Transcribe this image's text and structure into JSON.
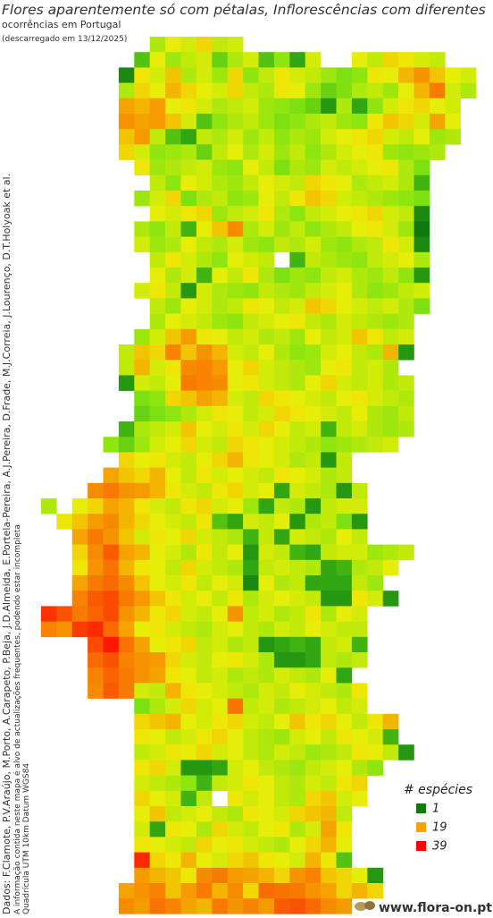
{
  "header": {
    "title": "Flores aparentemente só com pétalas, Inflorescências com diferentes",
    "subtitle": "ocorrências em Portugal",
    "downloaded": "(descarregado em 13/12/2025)"
  },
  "credits": [
    "Dados: F.Clamote, P.V.Araújo, M.Porto, A.Carapeto, P.Beja, J.D.Almeida, E.Portela-Pereira, A.J.Pereira, D.Frade, M.J.Correia, J.Lourenço, D.T.Holyoak et al.",
    "A informação contida neste mapa é alvo de actualizações frequentes, podendo estar incompleta",
    "Quadrícula UTM 10km Datum WGS84"
  ],
  "legend": {
    "title": "# espécies",
    "items": [
      {
        "value": 1,
        "color": "#107a10"
      },
      {
        "value": 19,
        "color": "#f5a300"
      },
      {
        "value": 39,
        "color": "#ff0000"
      }
    ]
  },
  "grid": {
    "rows": [
      [
        null,
        null,
        null,
        null,
        null,
        null,
        null,
        null,
        11,
        14,
        13,
        16,
        12,
        13
      ],
      [
        null,
        null,
        null,
        null,
        null,
        null,
        null,
        6,
        14,
        10,
        12,
        13,
        7,
        11,
        13,
        6,
        9,
        4,
        13,
        null,
        null,
        14,
        12,
        16,
        15,
        13,
        12
      ],
      [
        null,
        null,
        null,
        null,
        null,
        null,
        2,
        15,
        13,
        17,
        11,
        13,
        10,
        16,
        9,
        12,
        15,
        13,
        12,
        10,
        8,
        9,
        15,
        14,
        18,
        21,
        17,
        14,
        13
      ],
      [
        null,
        null,
        null,
        null,
        null,
        null,
        11,
        16,
        14,
        18,
        16,
        14,
        13,
        16,
        12,
        11,
        15,
        14,
        10,
        7,
        8,
        11,
        12,
        10,
        14,
        18,
        24,
        13,
        11
      ],
      [
        null,
        null,
        null,
        null,
        null,
        null,
        19,
        18,
        20,
        14,
        15,
        13,
        11,
        12,
        13,
        10,
        9,
        8,
        7,
        3,
        11,
        4,
        9,
        13,
        15,
        16,
        14,
        13
      ],
      [
        null,
        null,
        null,
        null,
        null,
        null,
        21,
        19,
        20,
        17,
        13,
        6,
        9,
        11,
        12,
        10,
        8,
        9,
        11,
        12,
        10,
        9,
        15,
        17,
        16,
        13,
        19,
        14
      ],
      [
        null,
        null,
        null,
        null,
        null,
        null,
        17,
        20,
        12,
        6,
        4,
        12,
        11,
        13,
        10,
        12,
        9,
        11,
        10,
        13,
        14,
        15,
        16,
        13,
        12,
        14,
        10,
        11
      ],
      [
        null,
        null,
        null,
        null,
        null,
        null,
        16,
        13,
        9,
        10,
        11,
        7,
        12,
        14,
        11,
        13,
        10,
        12,
        9,
        11,
        13,
        14,
        15,
        10,
        9,
        10,
        11
      ],
      [
        null,
        null,
        null,
        null,
        null,
        null,
        null,
        15,
        10,
        11,
        12,
        13,
        10,
        9,
        14,
        12,
        8,
        11,
        10,
        13,
        12,
        13,
        14,
        15,
        11,
        8
      ],
      [
        null,
        null,
        null,
        null,
        null,
        null,
        null,
        null,
        12,
        9,
        14,
        13,
        11,
        10,
        12,
        14,
        13,
        12,
        16,
        15,
        14,
        11,
        12,
        13,
        11,
        5
      ],
      [
        null,
        null,
        null,
        null,
        null,
        null,
        null,
        10,
        13,
        16,
        8,
        11,
        12,
        9,
        10,
        14,
        12,
        15,
        17,
        16,
        13,
        12,
        11,
        10,
        9,
        8
      ],
      [
        null,
        null,
        null,
        null,
        null,
        null,
        null,
        null,
        14,
        13,
        15,
        16,
        10,
        12,
        13,
        15,
        11,
        9,
        12,
        13,
        14,
        15,
        16,
        13,
        12,
        2
      ],
      [
        null,
        null,
        null,
        null,
        null,
        null,
        null,
        11,
        9,
        12,
        5,
        14,
        17,
        22,
        11,
        13,
        10,
        12,
        9,
        11,
        12,
        14,
        15,
        13,
        10,
        1
      ],
      [
        null,
        null,
        null,
        null,
        null,
        null,
        null,
        13,
        10,
        11,
        14,
        12,
        11,
        13,
        10,
        9,
        12,
        11,
        13,
        10,
        9,
        11,
        12,
        15,
        13,
        2
      ],
      [
        null,
        null,
        null,
        null,
        null,
        null,
        null,
        null,
        12,
        15,
        13,
        11,
        9,
        14,
        13,
        12,
        null,
        5,
        12,
        11,
        10,
        9,
        12,
        13,
        14,
        11
      ],
      [
        null,
        null,
        null,
        null,
        null,
        null,
        null,
        null,
        14,
        11,
        13,
        5,
        14,
        12,
        15,
        11,
        8,
        10,
        9,
        12,
        13,
        11,
        10,
        12,
        9,
        3
      ],
      [
        null,
        null,
        null,
        null,
        null,
        null,
        null,
        13,
        15,
        12,
        3,
        13,
        11,
        10,
        9,
        12,
        11,
        10,
        12,
        13,
        14,
        11,
        9,
        10,
        12,
        13
      ],
      [
        null,
        null,
        null,
        null,
        null,
        null,
        null,
        null,
        12,
        10,
        14,
        13,
        11,
        12,
        15,
        14,
        12,
        13,
        17,
        16,
        14,
        13,
        12,
        13,
        11,
        8
      ],
      [
        null,
        null,
        null,
        null,
        null,
        null,
        null,
        null,
        11,
        14,
        13,
        12,
        10,
        9,
        12,
        13,
        14,
        15,
        12,
        11,
        13,
        12,
        11,
        10,
        11
      ],
      [
        null,
        null,
        null,
        null,
        null,
        null,
        null,
        10,
        13,
        17,
        20,
        15,
        14,
        12,
        13,
        11,
        12,
        10,
        14,
        12,
        13,
        17,
        15,
        12,
        13
      ],
      [
        null,
        null,
        null,
        null,
        null,
        null,
        12,
        17,
        16,
        23,
        17,
        21,
        18,
        13,
        12,
        14,
        11,
        9,
        10,
        13,
        14,
        12,
        11,
        18,
        3
      ],
      [
        null,
        null,
        null,
        null,
        null,
        null,
        12,
        18,
        13,
        15,
        22,
        23,
        20,
        14,
        16,
        13,
        12,
        11,
        10,
        14,
        15,
        12,
        13,
        11
      ],
      [
        null,
        null,
        null,
        null,
        null,
        null,
        3,
        13,
        12,
        14,
        24,
        23,
        22,
        14,
        15,
        13,
        12,
        11,
        14,
        16,
        13,
        12,
        13,
        11,
        12
      ],
      [
        null,
        null,
        null,
        null,
        null,
        null,
        null,
        8,
        9,
        16,
        17,
        19,
        18,
        13,
        12,
        16,
        15,
        14,
        13,
        12,
        14,
        15,
        13,
        12,
        11
      ],
      [
        null,
        null,
        null,
        null,
        null,
        null,
        null,
        7,
        8,
        9,
        11,
        13,
        15,
        14,
        12,
        13,
        16,
        15,
        14,
        13,
        12,
        14,
        11,
        10,
        12
      ],
      [
        null,
        null,
        null,
        null,
        null,
        null,
        5,
        11,
        12,
        13,
        17,
        14,
        13,
        15,
        13,
        16,
        14,
        12,
        13,
        5,
        12,
        13,
        11,
        10,
        11
      ],
      [
        null,
        null,
        null,
        null,
        null,
        9,
        7,
        10,
        13,
        14,
        16,
        13,
        12,
        16,
        15,
        14,
        13,
        12,
        11,
        9,
        10,
        11,
        12,
        13
      ],
      [
        null,
        null,
        null,
        null,
        null,
        null,
        16,
        14,
        15,
        13,
        12,
        14,
        16,
        18,
        15,
        14,
        13,
        11,
        12,
        3,
        12
      ],
      [
        null,
        null,
        null,
        null,
        null,
        19,
        17,
        16,
        18,
        14,
        12,
        15,
        13,
        14,
        13,
        12,
        15,
        14,
        13,
        11,
        12
      ],
      [
        null,
        null,
        null,
        null,
        22,
        24,
        21,
        20,
        18,
        15,
        13,
        12,
        15,
        16,
        13,
        14,
        4,
        13,
        12,
        11,
        3,
        12
      ],
      [
        null,
        11,
        null,
        14,
        16,
        19,
        18,
        15,
        13,
        12,
        15,
        16,
        13,
        14,
        10,
        4,
        12,
        11,
        3,
        12,
        13,
        13
      ],
      [
        null,
        null,
        15,
        17,
        20,
        22,
        18,
        16,
        14,
        13,
        12,
        15,
        6,
        4,
        13,
        12,
        14,
        3,
        11,
        12,
        8,
        3
      ],
      [
        null,
        null,
        null,
        19,
        24,
        21,
        17,
        13,
        15,
        14,
        16,
        13,
        12,
        11,
        5,
        12,
        4,
        13,
        12,
        11,
        14,
        12
      ],
      [
        null,
        null,
        null,
        16,
        22,
        28,
        19,
        18,
        14,
        13,
        11,
        15,
        12,
        14,
        3,
        13,
        12,
        5,
        4,
        12,
        13,
        13,
        10,
        11,
        12
      ],
      [
        null,
        null,
        null,
        15,
        21,
        25,
        18,
        15,
        14,
        12,
        16,
        13,
        12,
        11,
        4,
        12,
        13,
        12,
        11,
        4,
        5,
        11,
        12,
        14
      ],
      [
        null,
        null,
        null,
        19,
        24,
        26,
        22,
        17,
        14,
        13,
        15,
        12,
        14,
        13,
        2,
        14,
        11,
        12,
        4,
        4,
        4,
        12,
        10
      ],
      [
        null,
        null,
        null,
        23,
        28,
        30,
        24,
        20,
        17,
        15,
        13,
        14,
        12,
        15,
        11,
        13,
        14,
        13,
        12,
        3,
        3,
        15,
        13,
        3
      ],
      [
        null,
        33,
        29,
        24,
        27,
        30,
        21,
        18,
        15,
        16,
        13,
        12,
        14,
        21,
        12,
        13,
        11,
        12,
        15,
        11,
        14,
        13
      ],
      [
        null,
        23,
        21,
        32,
        34,
        26,
        19,
        14,
        15,
        13,
        12,
        11,
        13,
        14,
        12,
        11,
        13,
        12,
        14,
        13,
        12,
        12
      ],
      [
        null,
        null,
        null,
        null,
        30,
        36,
        25,
        19,
        14,
        15,
        16,
        12,
        13,
        11,
        12,
        3,
        4,
        5,
        4,
        12,
        13,
        5
      ],
      [
        null,
        null,
        null,
        null,
        26,
        29,
        23,
        21,
        20,
        16,
        13,
        12,
        14,
        15,
        13,
        11,
        3,
        3,
        4,
        12,
        11,
        12
      ],
      [
        null,
        null,
        null,
        null,
        23,
        27,
        24,
        21,
        19,
        15,
        14,
        12,
        13,
        11,
        12,
        11,
        13,
        12,
        11,
        14,
        4,
        null
      ],
      [
        null,
        null,
        null,
        null,
        22,
        28,
        24,
        13,
        12,
        18,
        15,
        14,
        13,
        12,
        11,
        13,
        12,
        14,
        13,
        12,
        11,
        15
      ],
      [
        null,
        null,
        null,
        null,
        null,
        null,
        null,
        8,
        11,
        13,
        16,
        13,
        14,
        25,
        12,
        13,
        11,
        12,
        13,
        14,
        12,
        13
      ],
      [
        null,
        null,
        null,
        null,
        null,
        null,
        null,
        16,
        17,
        18,
        14,
        13,
        15,
        16,
        13,
        12,
        14,
        17,
        15,
        16,
        14,
        12,
        15,
        18
      ],
      [
        null,
        null,
        null,
        null,
        null,
        null,
        null,
        15,
        14,
        12,
        13,
        15,
        16,
        14,
        12,
        11,
        10,
        13,
        14,
        12,
        15,
        14,
        13,
        5
      ],
      [
        null,
        null,
        null,
        null,
        null,
        null,
        null,
        12,
        13,
        15,
        14,
        16,
        13,
        14,
        12,
        11,
        13,
        12,
        10,
        11,
        12,
        15,
        14,
        12,
        3
      ],
      [
        null,
        null,
        null,
        null,
        null,
        null,
        null,
        15,
        16,
        13,
        3,
        3,
        4,
        13,
        14,
        12,
        11,
        10,
        12,
        13,
        14,
        11,
        9
      ],
      [
        null,
        null,
        null,
        null,
        null,
        null,
        null,
        13,
        12,
        11,
        9,
        5,
        12,
        13,
        15,
        14,
        12,
        11,
        13,
        12,
        15,
        16
      ],
      [
        null,
        null,
        null,
        null,
        null,
        null,
        null,
        16,
        14,
        13,
        5,
        12,
        null,
        15,
        13,
        14,
        12,
        11,
        16,
        17,
        13,
        14
      ],
      [
        null,
        null,
        null,
        null,
        null,
        null,
        null,
        14,
        17,
        12,
        13,
        14,
        12,
        11,
        15,
        14,
        13,
        16,
        17,
        18,
        12
      ],
      [
        null,
        null,
        null,
        null,
        null,
        null,
        null,
        13,
        4,
        15,
        14,
        11,
        16,
        13,
        12,
        14,
        15,
        11,
        13,
        19,
        15
      ],
      [
        null,
        null,
        null,
        null,
        null,
        null,
        null,
        15,
        14,
        13,
        12,
        16,
        14,
        15,
        13,
        12,
        11,
        14,
        16,
        18,
        14
      ],
      [
        null,
        null,
        null,
        null,
        null,
        null,
        null,
        34,
        16,
        15,
        18,
        14,
        13,
        16,
        17,
        15,
        14,
        13,
        18,
        15,
        6
      ],
      [
        null,
        null,
        null,
        null,
        null,
        null,
        null,
        20,
        18,
        17,
        15,
        22,
        24,
        20,
        19,
        18,
        16,
        21,
        23,
        17,
        16,
        14,
        3
      ],
      [
        null,
        null,
        null,
        null,
        null,
        null,
        19,
        21,
        23,
        17,
        20,
        24,
        18,
        22,
        16,
        26,
        25,
        24,
        21,
        19,
        16,
        18,
        16
      ],
      [
        null,
        null,
        null,
        null,
        null,
        null,
        22,
        20,
        25,
        23,
        19,
        18,
        24,
        21,
        23,
        20,
        28,
        29,
        26,
        22,
        20
      ]
    ]
  },
  "footer": {
    "site": "www.flora-on.pt"
  }
}
